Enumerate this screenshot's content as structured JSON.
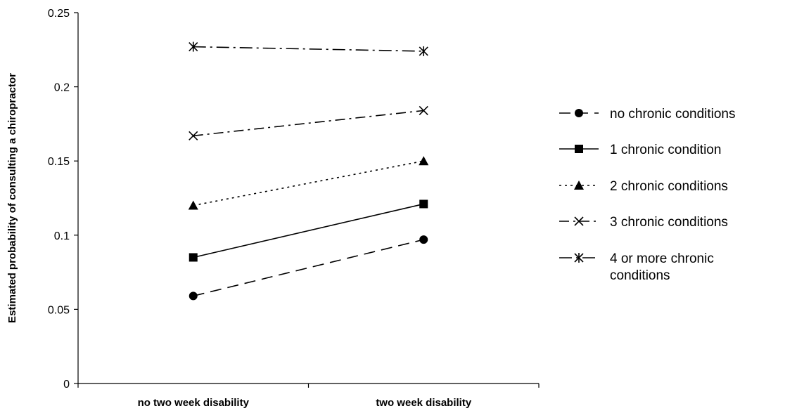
{
  "chart_data": {
    "type": "line",
    "title": "",
    "xlabel": "",
    "ylabel": "Estimated probability of consulting a chiropractor",
    "categories": [
      "no two week disability",
      "two week disability"
    ],
    "ylim": [
      0,
      0.25
    ],
    "yticks": [
      "0",
      "0.05",
      "0.1",
      "0.15",
      "0.2",
      "0.25"
    ],
    "grid": false,
    "legend_position": "right",
    "series": [
      {
        "name": "no chronic conditions",
        "values": [
          0.059,
          0.097
        ],
        "marker": "circle",
        "dash": "long-dash",
        "legend_lines": [
          "no chronic conditions"
        ]
      },
      {
        "name": "1 chronic condition",
        "values": [
          0.085,
          0.121
        ],
        "marker": "square",
        "dash": "solid",
        "legend_lines": [
          "1 chronic condition"
        ]
      },
      {
        "name": "2 chronic conditions",
        "values": [
          0.12,
          0.15
        ],
        "marker": "triangle",
        "dash": "dotted",
        "legend_lines": [
          "2 chronic conditions"
        ]
      },
      {
        "name": "3 chronic conditions",
        "values": [
          0.167,
          0.184
        ],
        "marker": "x",
        "dash": "dash-dot",
        "legend_lines": [
          "3 chronic conditions"
        ]
      },
      {
        "name": "4 or more chronic conditions",
        "values": [
          0.227,
          0.224
        ],
        "marker": "star",
        "dash": "long-dash-dot",
        "legend_lines": [
          "4 or more chronic",
          "conditions"
        ]
      }
    ],
    "colors": {
      "line": "#000000",
      "background": "#ffffff"
    }
  }
}
